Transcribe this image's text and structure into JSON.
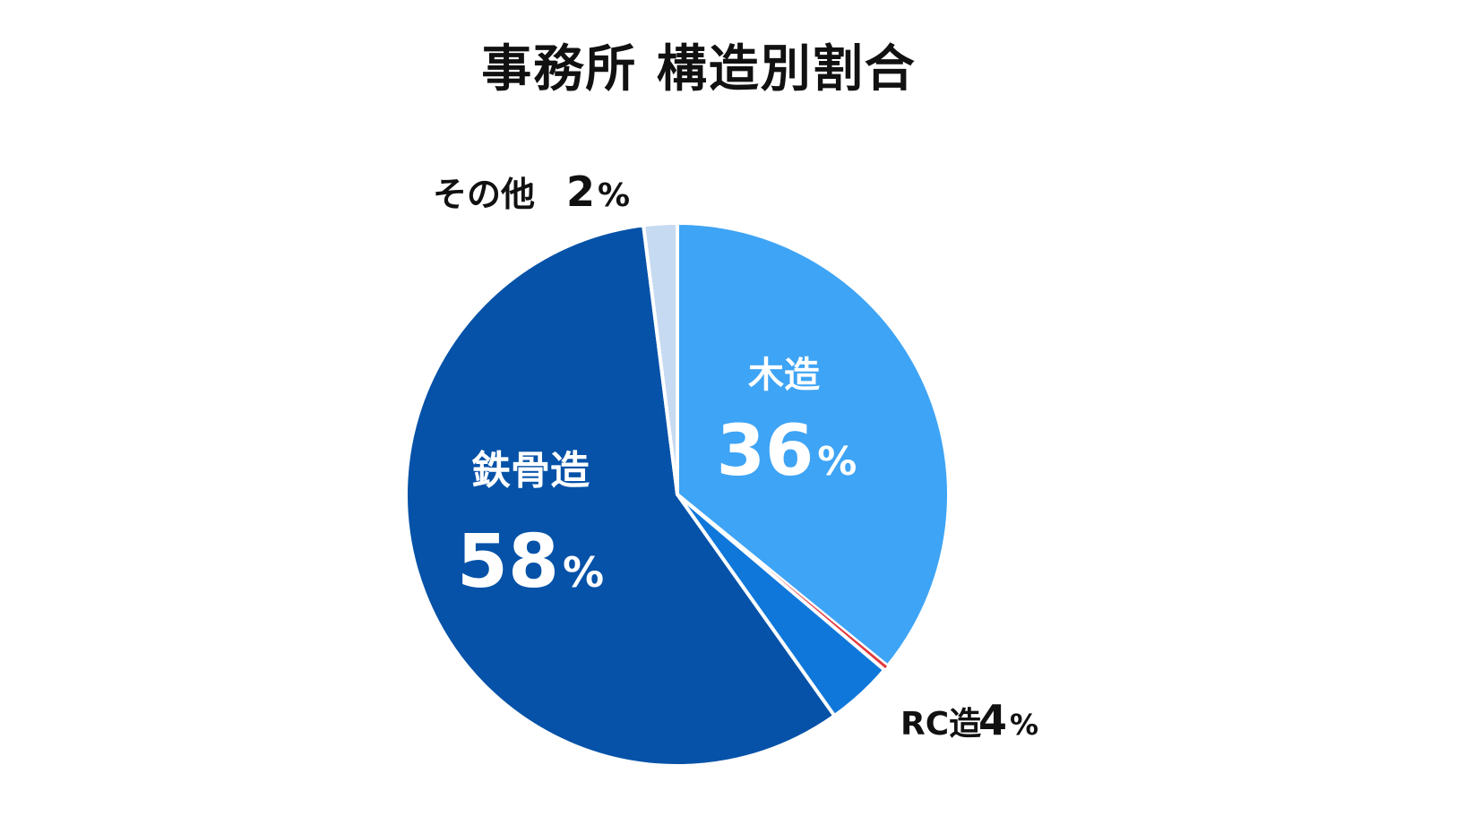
{
  "chart_data": {
    "type": "pie",
    "title": "事務所 構造別割合",
    "slices": [
      {
        "label": "木造",
        "value": 36,
        "value_text": "36",
        "unit": "%",
        "color": "#3ea4f5"
      },
      {
        "label": "",
        "value": 0.3,
        "value_text": "",
        "unit": "",
        "color": "#e0393e"
      },
      {
        "label": "RC造",
        "value": 4,
        "value_text": "4",
        "unit": "%",
        "color": "#0f77da"
      },
      {
        "label": "鉄骨造",
        "value": 58,
        "value_text": "58",
        "unit": "%",
        "color": "#0552a8"
      },
      {
        "label": "その他",
        "value": 2,
        "value_text": "2",
        "unit": "%",
        "color": "#c6daf1"
      }
    ],
    "start": "12 o'clock",
    "direction": "clockwise"
  }
}
